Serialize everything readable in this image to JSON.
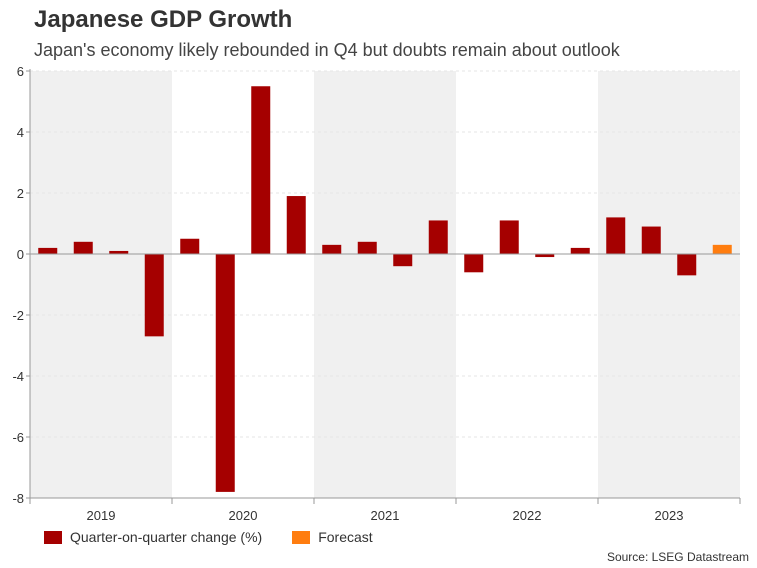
{
  "header": {
    "title": "Japanese GDP Growth",
    "subtitle": "Japan's economy likely rebounded in Q4 but doubts remain about outlook"
  },
  "source": "Source: LSEG Datastream",
  "colors": {
    "actual": "#a50000",
    "forecast": "#ff7d0f",
    "band": "#f0f0f0",
    "grid": "#e6e6e6",
    "axis": "#999999"
  },
  "chart_data": {
    "type": "bar",
    "title": "Japanese GDP Growth",
    "subtitle": "Japan's economy likely rebounded in Q4 but doubts remain about outlook",
    "xlabel": "",
    "ylabel": "",
    "ylim": [
      -8,
      6
    ],
    "yticks": [
      6,
      4,
      2,
      0,
      -2,
      -4,
      -6,
      -8
    ],
    "categories": [
      "2019 Q1",
      "2019 Q2",
      "2019 Q3",
      "2019 Q4",
      "2020 Q1",
      "2020 Q2",
      "2020 Q3",
      "2020 Q4",
      "2021 Q1",
      "2021 Q2",
      "2021 Q3",
      "2021 Q4",
      "2022 Q1",
      "2022 Q2",
      "2022 Q3",
      "2022 Q4",
      "2023 Q1",
      "2023 Q2",
      "2023 Q3",
      "2023 Q4"
    ],
    "year_labels": [
      "2019",
      "2020",
      "2021",
      "2022",
      "2023"
    ],
    "series": [
      {
        "name": "Quarter-on-quarter change (%)",
        "values": [
          0.2,
          0.4,
          0.1,
          -2.7,
          0.5,
          -7.8,
          5.5,
          1.9,
          0.3,
          0.4,
          -0.4,
          1.1,
          -0.6,
          1.1,
          -0.1,
          0.2,
          1.2,
          0.9,
          -0.7,
          null
        ]
      },
      {
        "name": "Forecast",
        "values": [
          null,
          null,
          null,
          null,
          null,
          null,
          null,
          null,
          null,
          null,
          null,
          null,
          null,
          null,
          null,
          null,
          null,
          null,
          null,
          0.3
        ]
      }
    ],
    "legend": [
      "Quarter-on-quarter change (%)",
      "Forecast"
    ],
    "legend_position": "bottom-left",
    "grid": true
  }
}
